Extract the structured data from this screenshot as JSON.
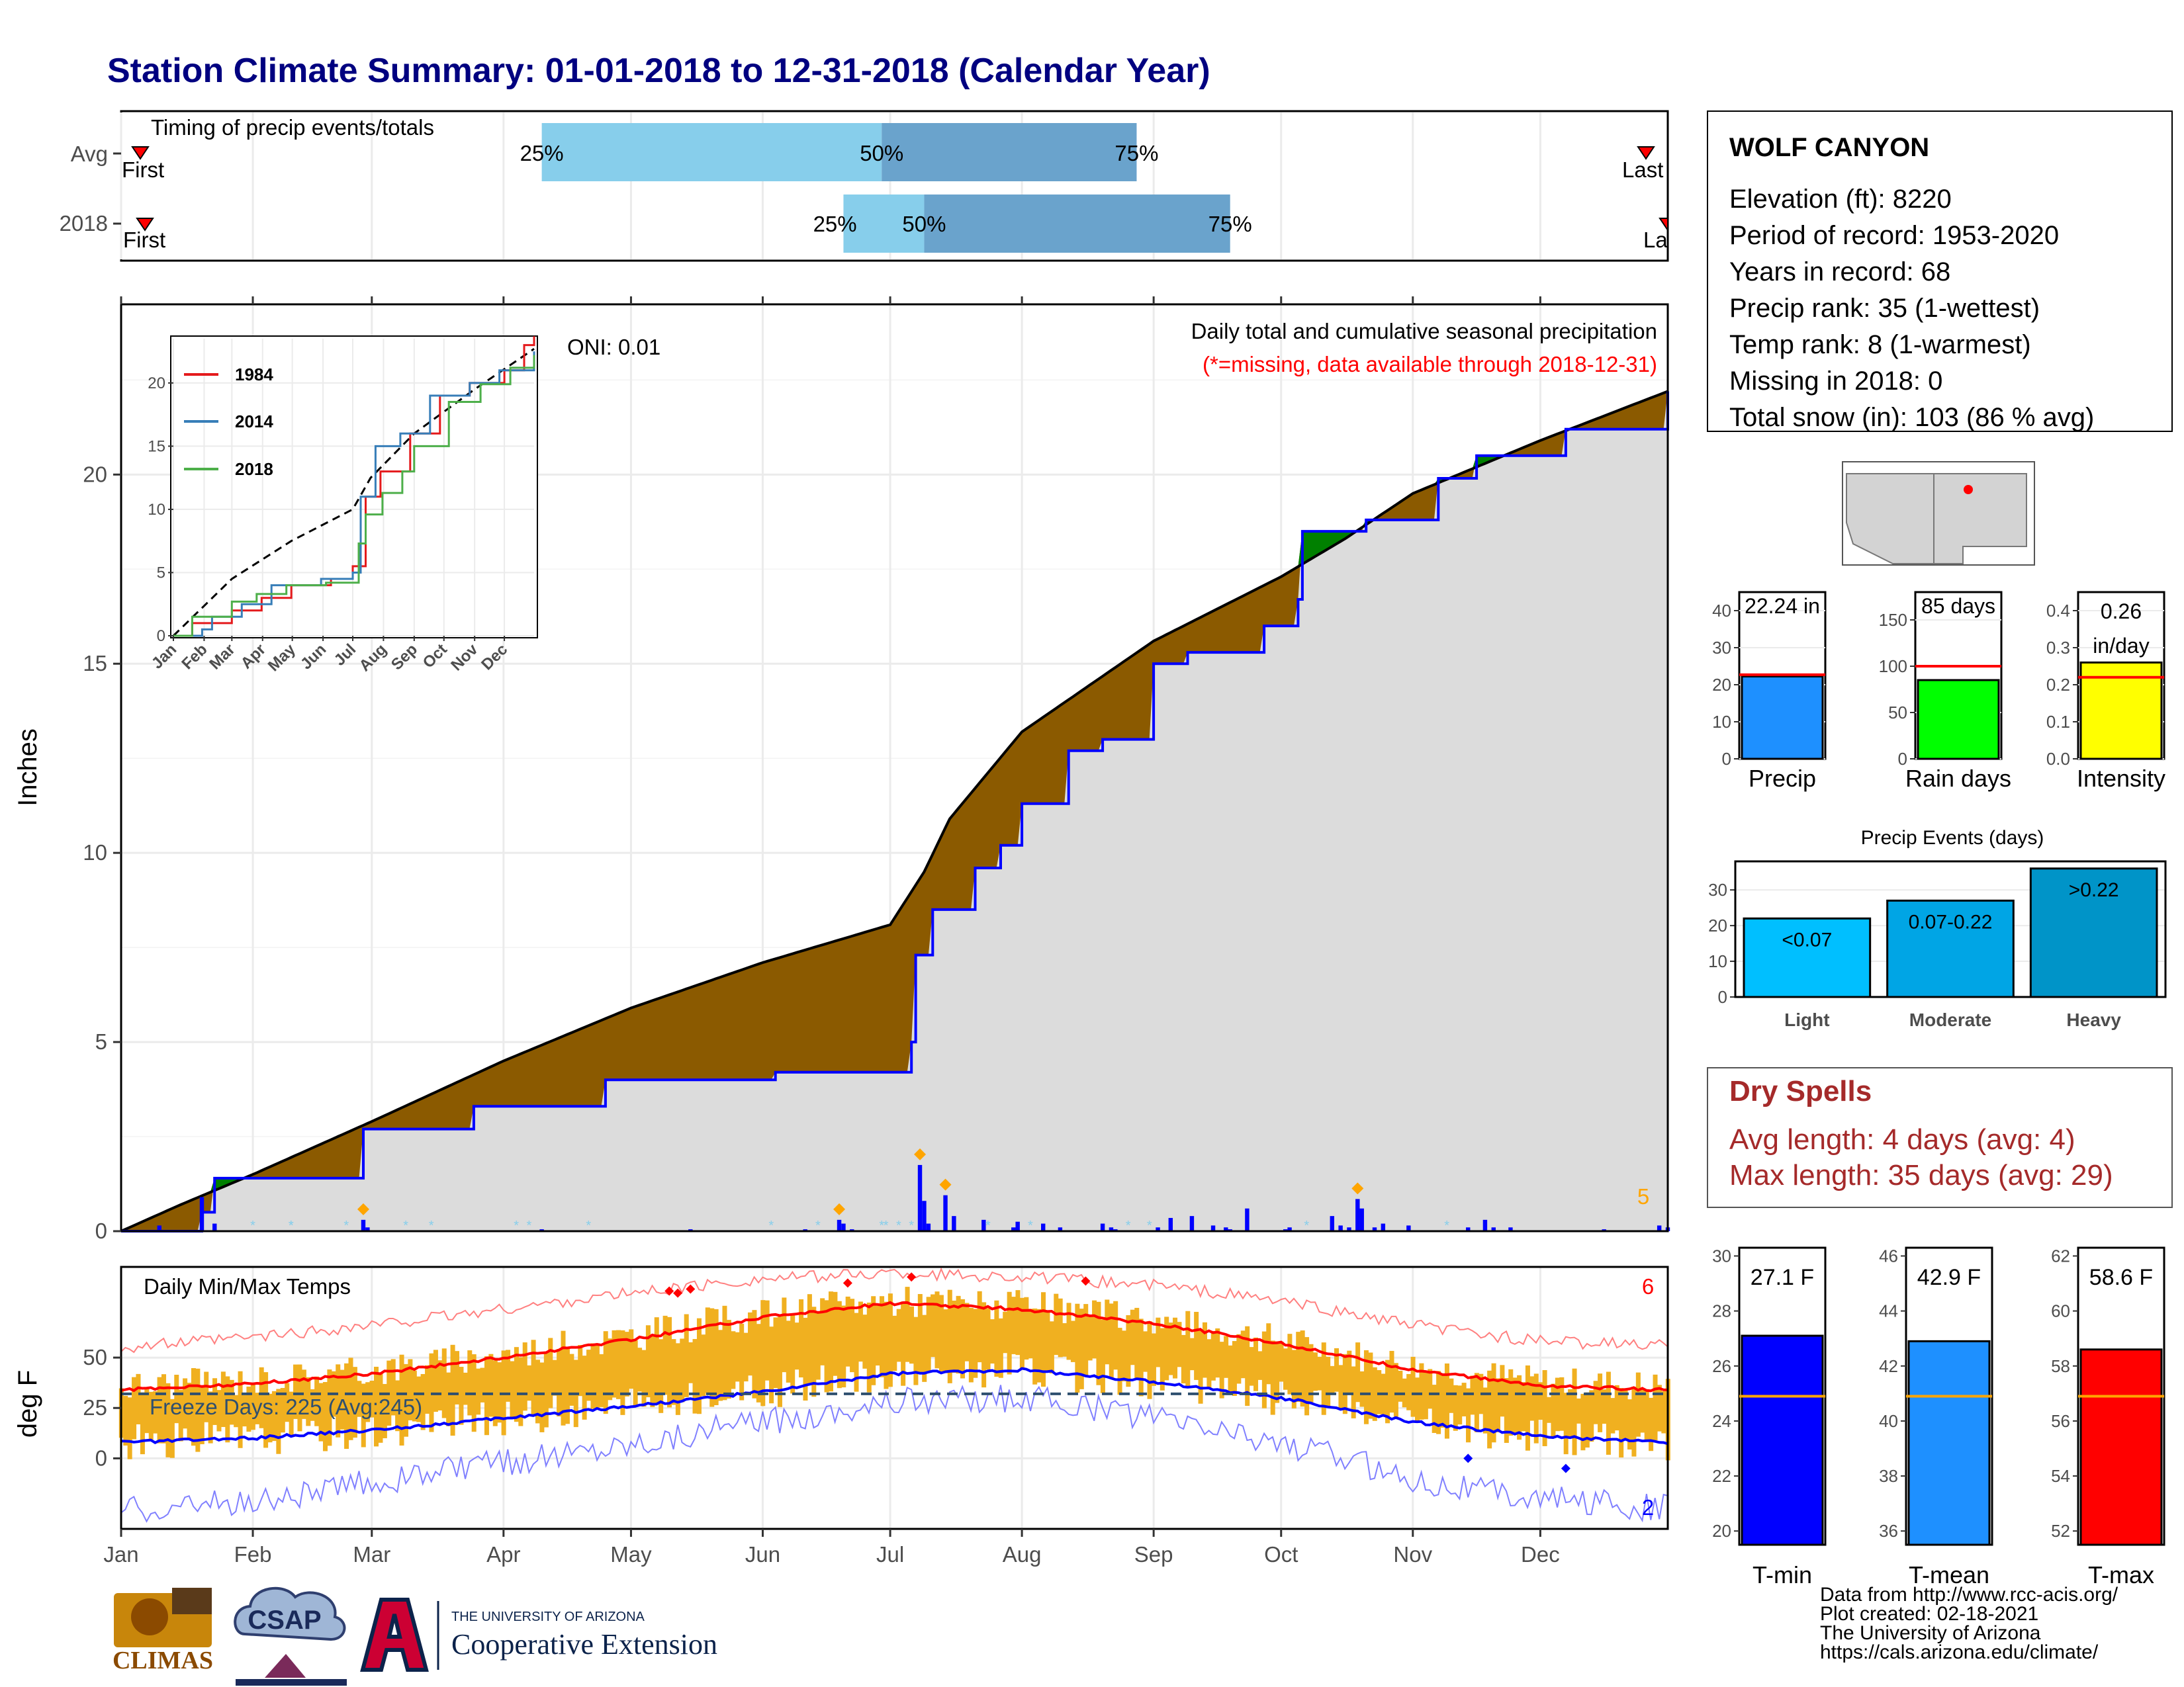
{
  "title": "Station Climate Summary: 01-01-2018 to 12-31-2018 (Calendar Year)",
  "timing": {
    "label": "Timing of precip events/totals",
    "rows": [
      "Avg",
      "2018"
    ],
    "avg": {
      "p25_day": 100,
      "p50_day": 180,
      "p75_day": 240
    },
    "y2018": {
      "p25_day": 171,
      "p50_day": 190,
      "p75_day": 262
    },
    "first_label": "First",
    "last_label": "Last",
    "last_label_2018": "La",
    "p25_label": "25%",
    "p50_label": "50%",
    "p75_label": "75%",
    "colors": {
      "light": "#87ceeb",
      "dark": "#6aa3cc",
      "marker": "#ff0000"
    }
  },
  "precip_panel": {
    "ylabel": "Inches",
    "oni": "ONI: 0.01",
    "subtitle": "Daily total and cumulative seasonal precipitation",
    "missing_note": "(*=missing, data available through 2018-12-31)",
    "corner_count": "5",
    "yticks": [
      "0",
      "5",
      "10",
      "15",
      "20"
    ]
  },
  "inset": {
    "legend": [
      "1984",
      "2014",
      "2018"
    ],
    "colors": {
      "1984": "#e41a1c",
      "2014": "#377eb8",
      "2018": "#4daf4a"
    },
    "yticks": [
      "0",
      "5",
      "10",
      "15",
      "20"
    ],
    "months": [
      "Jan",
      "Feb",
      "Mar",
      "Apr",
      "May",
      "Jun",
      "Jul",
      "Aug",
      "Sep",
      "Oct",
      "Nov",
      "Dec"
    ]
  },
  "temp_panel": {
    "ylabel": "deg F",
    "label": "Daily Min/Max Temps",
    "freeze": "Freeze Days: 225 (Avg:245)",
    "max_count": "6",
    "min_count": "2",
    "yticks": [
      "0",
      "25",
      "50"
    ]
  },
  "months": [
    "Jan",
    "Feb",
    "Mar",
    "Apr",
    "May",
    "Jun",
    "Jul",
    "Aug",
    "Sep",
    "Oct",
    "Nov",
    "Dec"
  ],
  "station": {
    "name": "WOLF CANYON",
    "lines": [
      "Elevation (ft): 8220",
      "Period of record: 1953-2020",
      "Years in record: 68",
      "Precip rank: 35 (1-wettest)",
      "Temp rank: 8 (1-warmest)",
      "Missing in 2018: 0",
      "Total snow (in): 103 (86 % avg)"
    ]
  },
  "mini_bars": [
    {
      "label": "Precip",
      "value_text": "22.24 in",
      "value": 22.24,
      "avg": 22.7,
      "ymax": 45,
      "ticks": [
        "0",
        "10",
        "20",
        "30",
        "40"
      ],
      "color": "#1e90ff"
    },
    {
      "label": "Rain days",
      "value_text": "85 days",
      "value": 85,
      "avg": 100,
      "ymax": 180,
      "ticks": [
        "0",
        "50",
        "100",
        "150"
      ],
      "color": "#00ff00"
    },
    {
      "label": "Intensity",
      "value_text": "0.26 in/day",
      "value": 0.26,
      "avg": 0.22,
      "ymax": 0.45,
      "ticks": [
        "0.0",
        "0.1",
        "0.2",
        "0.3",
        "0.4"
      ],
      "color": "#ffff00"
    }
  ],
  "precip_events": {
    "title": "Precip Events (days)",
    "categories": [
      "Light",
      "Moderate",
      "Heavy"
    ],
    "labels": [
      "<0.07",
      "0.07-0.22",
      ">0.22"
    ],
    "values": [
      22,
      27,
      36
    ],
    "ticks": [
      "0",
      "10",
      "20",
      "30"
    ],
    "colors": [
      "#00bfff",
      "#00a5e5",
      "#0094c8"
    ]
  },
  "dry_spells": {
    "title": "Dry Spells",
    "avg": "Avg length: 4 days (avg: 4)",
    "max": "Max length: 35 days (avg: 29)"
  },
  "temp_bars": [
    {
      "label": "T-min",
      "value_text": "27.1 F",
      "value": 27.1,
      "avg": 24.9,
      "ymin": 19.5,
      "ymax": 30.3,
      "ticks": [
        "20",
        "22",
        "24",
        "26",
        "28",
        "30"
      ],
      "color": "#0000ff"
    },
    {
      "label": "T-mean",
      "value_text": "42.9 F",
      "value": 42.9,
      "avg": 40.9,
      "ymin": 35.5,
      "ymax": 46.3,
      "ticks": [
        "36",
        "38",
        "40",
        "42",
        "44",
        "46"
      ],
      "color": "#1e90ff"
    },
    {
      "label": "T-max",
      "value_text": "58.6 F",
      "value": 58.6,
      "avg": 56.9,
      "ymin": 51.5,
      "ymax": 62.3,
      "ticks": [
        "52",
        "54",
        "56",
        "58",
        "60",
        "62"
      ],
      "color": "#ff0000"
    }
  ],
  "footer": {
    "lines": [
      "Data from http://www.rcc-acis.org/",
      "Plot created: 02-18-2021",
      "The University of Arizona",
      "https://cals.arizona.edu/climate/"
    ],
    "logos": {
      "climas": "CLIMAS",
      "csap": "CSAP",
      "ua_small": "THE UNIVERSITY OF ARIZONA",
      "ua_big": "Cooperative Extension"
    }
  },
  "chart_data": [
    {
      "type": "area",
      "title": "Daily total and cumulative seasonal precipitation",
      "ylabel": "Inches",
      "ylim": [
        0,
        24.5
      ],
      "x_unit": "day of year",
      "series": [
        {
          "name": "Avg",
          "x": [
            1,
            15,
            32,
            60,
            91,
            121,
            152,
            182,
            190,
            196,
            213,
            244,
            274,
            289,
            305,
            335,
            365
          ],
          "y": [
            0,
            0.7,
            1.5,
            2.9,
            4.5,
            5.9,
            7.1,
            8.1,
            9.5,
            10.9,
            13.2,
            15.6,
            17.3,
            18.3,
            19.5,
            20.9,
            22.2
          ]
        },
        {
          "name": "2018",
          "x": [
            1,
            20,
            23,
            58,
            84,
            115,
            155,
            187,
            188,
            192,
            202,
            208,
            213,
            224,
            232,
            244,
            252,
            270,
            278,
            279,
            294,
            311,
            320,
            341,
            365
          ],
          "y": [
            0,
            0.5,
            1.4,
            2.7,
            3.3,
            4.0,
            4.2,
            5.0,
            7.3,
            8.5,
            9.6,
            10.2,
            11.3,
            12.7,
            13.0,
            15.0,
            15.3,
            16.0,
            16.7,
            18.5,
            18.8,
            19.9,
            20.5,
            21.2,
            22.2
          ]
        }
      ],
      "fill_colors": {
        "deficit": "#8b5a00",
        "surplus": "#008000",
        "area": "#dcdcdc"
      },
      "daily_bars": [
        [
          10,
          0.15
        ],
        [
          20,
          0.9
        ],
        [
          23,
          0.2
        ],
        [
          58,
          0.3
        ],
        [
          59,
          0.1
        ],
        [
          100,
          0.05
        ],
        [
          135,
          0.05
        ],
        [
          162,
          0.05
        ],
        [
          173,
          0.05
        ],
        [
          190,
          0.05
        ],
        [
          211,
          0.1
        ],
        [
          235,
          0.05
        ],
        [
          262,
          0.05
        ],
        [
          275,
          0.05
        ],
        [
          296,
          0.1
        ],
        [
          324,
          0.1
        ],
        [
          350,
          0.05
        ],
        [
          189,
          1.75
        ],
        [
          190,
          0.8
        ],
        [
          191,
          0.2
        ],
        [
          195,
          0.95
        ],
        [
          197,
          0.4
        ],
        [
          204,
          0.3
        ],
        [
          212,
          0.25
        ],
        [
          218,
          0.2
        ],
        [
          222,
          0.1
        ],
        [
          232,
          0.2
        ],
        [
          234,
          0.1
        ],
        [
          245,
          0.1
        ],
        [
          248,
          0.35
        ],
        [
          253,
          0.4
        ],
        [
          258,
          0.15
        ],
        [
          261,
          0.1
        ],
        [
          266,
          0.6
        ],
        [
          276,
          0.1
        ],
        [
          286,
          0.4
        ],
        [
          288,
          0.15
        ],
        [
          290,
          0.1
        ],
        [
          298,
          0.2
        ],
        [
          304,
          0.15
        ],
        [
          318,
          0.1
        ],
        [
          322,
          0.3
        ],
        [
          328,
          0.1
        ],
        [
          363,
          0.15
        ],
        [
          365,
          0.1
        ],
        [
          292,
          0.85
        ],
        [
          293,
          0.6
        ],
        [
          170,
          0.3
        ],
        [
          171,
          0.2
        ]
      ]
    },
    {
      "type": "line",
      "title": "Daily Min/Max Temps",
      "ylabel": "deg F",
      "ylim": [
        -35,
        95
      ],
      "x": [
        1,
        32,
        60,
        91,
        121,
        152,
        182,
        213,
        244,
        274,
        305,
        335,
        365
      ],
      "series": [
        {
          "name": "Avg max",
          "values": [
            34,
            37,
            42,
            50,
            59,
            70,
            77,
            74,
            67,
            57,
            44,
            36,
            34
          ]
        },
        {
          "name": "Avg min",
          "values": [
            8,
            10,
            14,
            20,
            26,
            33,
            42,
            44,
            38,
            30,
            18,
            11,
            8
          ]
        },
        {
          "name": "Record max",
          "values": [
            55,
            60,
            66,
            74,
            82,
            89,
            92,
            90,
            86,
            78,
            66,
            58,
            56
          ]
        },
        {
          "name": "Record min",
          "values": [
            -25,
            -22,
            -12,
            -2,
            8,
            18,
            28,
            30,
            20,
            8,
            -10,
            -20,
            -25
          ]
        }
      ],
      "freeze_line": 32,
      "colors": {
        "bars": "#f0b020",
        "max": "#ff0000",
        "min": "#0000ff",
        "freeze": "#2f4f6f"
      }
    }
  ]
}
